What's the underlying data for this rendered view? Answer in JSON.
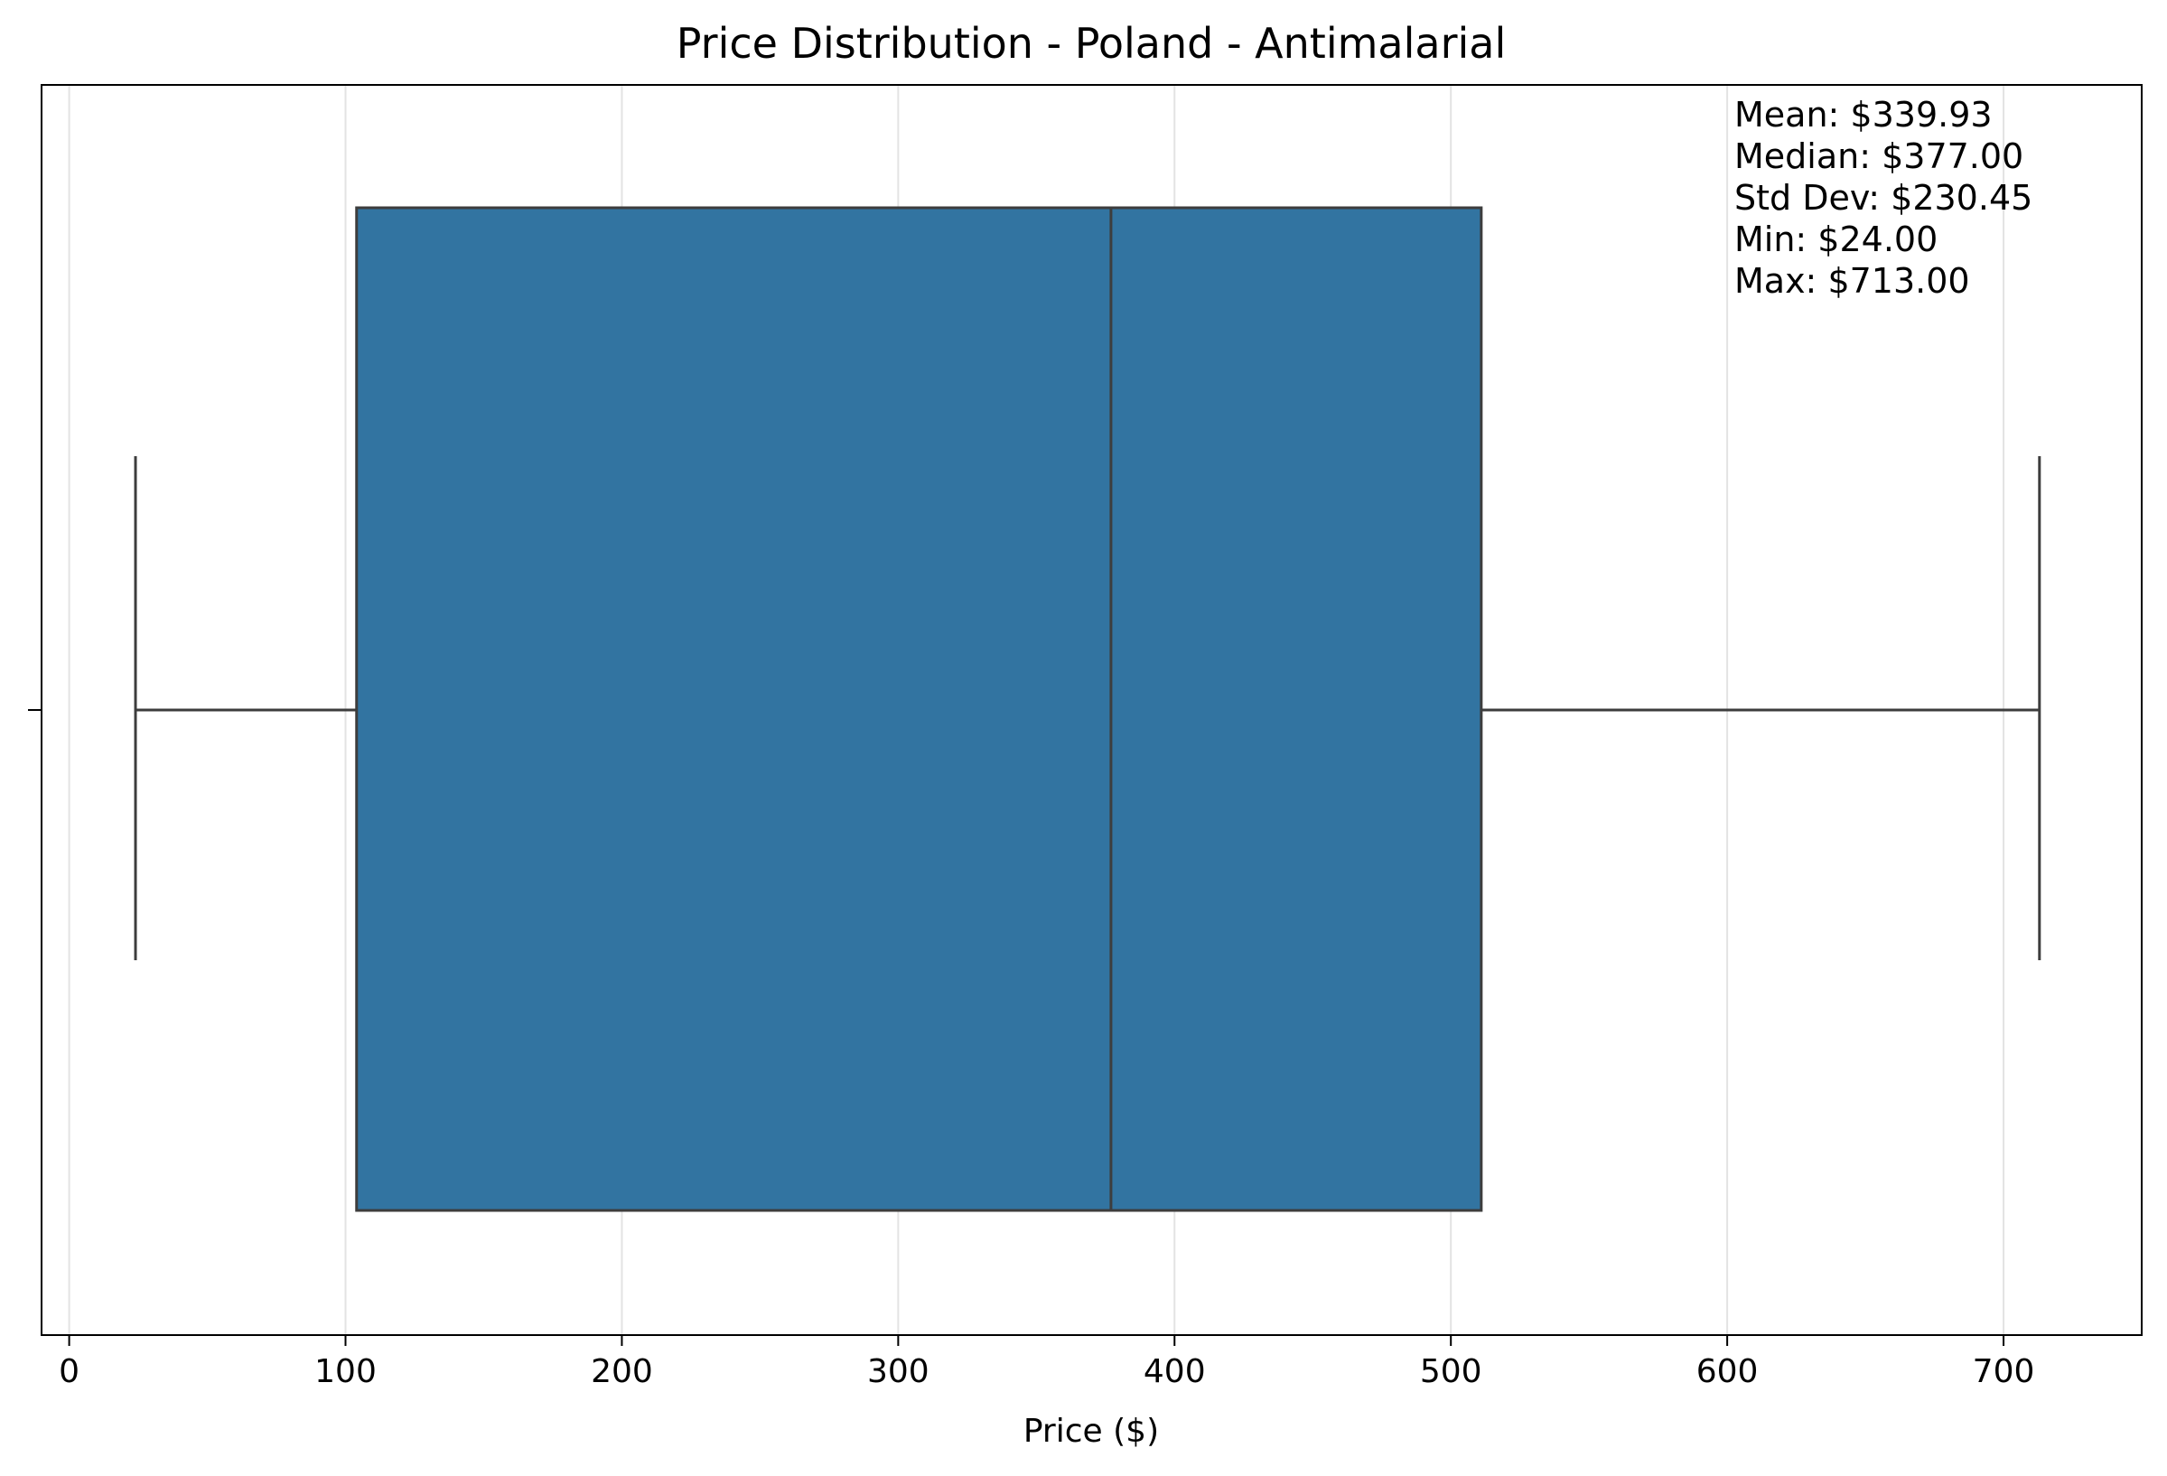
{
  "chart_data": {
    "type": "box",
    "title": "Price Distribution - Poland - Antimalarial",
    "xlabel": "Price ($)",
    "ylabel": "",
    "orientation": "horizontal",
    "xlim": [
      -10,
      750
    ],
    "xticks": [
      0,
      100,
      200,
      300,
      400,
      500,
      600,
      700
    ],
    "grid": "vertical",
    "box": {
      "whisker_low": 24,
      "q1": 104,
      "median": 377,
      "q3": 511,
      "whisker_high": 713,
      "color": "#3274a1",
      "edge_color": "#3d3d3d"
    },
    "stats": {
      "mean": "Mean: $339.93",
      "median": "Median: $377.00",
      "std": "Std Dev: $230.45",
      "min": "Min: $24.00",
      "max": "Max: $713.00"
    }
  }
}
